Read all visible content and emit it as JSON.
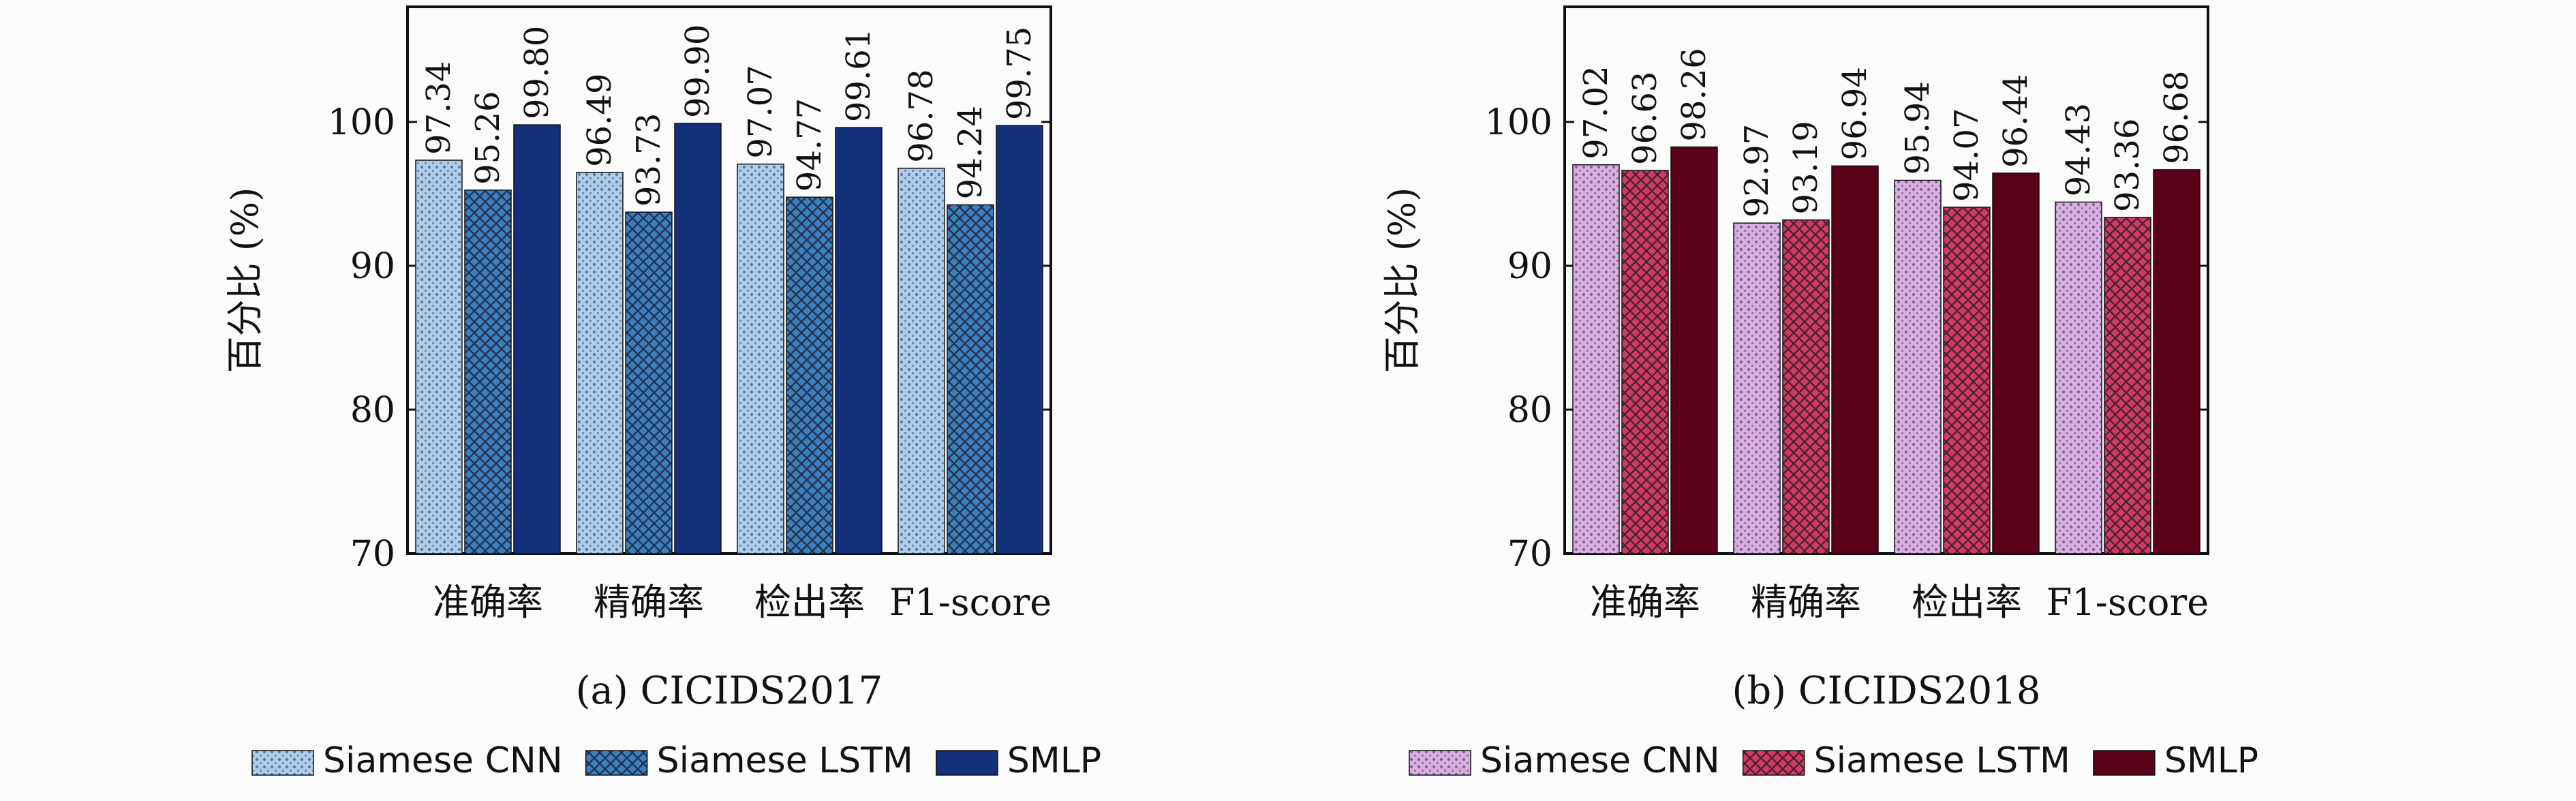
{
  "chart_data": [
    {
      "type": "bar",
      "caption": "(a) CICIDS2017",
      "ylabel": "百分比 (%)",
      "ylim": [
        70,
        108
      ],
      "yticks": [
        70,
        80,
        90,
        100
      ],
      "categories": [
        "准确率",
        "精确率",
        "检出率",
        "F1-score"
      ],
      "series": [
        {
          "name": "Siamese CNN",
          "values": [
            97.34,
            96.49,
            97.07,
            96.78
          ],
          "color": "#aecdea",
          "pattern": "dots"
        },
        {
          "name": "Siamese LSTM",
          "values": [
            95.26,
            93.73,
            94.77,
            94.24
          ],
          "color": "#3b7fbf",
          "pattern": "crosshatch"
        },
        {
          "name": "SMLP",
          "values": [
            99.8,
            99.9,
            99.61,
            99.75
          ],
          "color": "#15307a",
          "pattern": "solid"
        }
      ],
      "value_labels": [
        [
          "97.34",
          "96.49",
          "97.07",
          "96.78"
        ],
        [
          "95.26",
          "93.73",
          "94.77",
          "94.24"
        ],
        [
          "99.80",
          "99.90",
          "99.61",
          "99.75"
        ]
      ],
      "grid": false,
      "legend": "bottom"
    },
    {
      "type": "bar",
      "caption": "(b) CICIDS2018",
      "ylabel": "百分比 (%)",
      "ylim": [
        70,
        108
      ],
      "yticks": [
        70,
        80,
        90,
        100
      ],
      "categories": [
        "准确率",
        "精确率",
        "检出率",
        "F1-score"
      ],
      "series": [
        {
          "name": "Siamese CNN",
          "values": [
            97.02,
            92.97,
            95.94,
            94.43
          ],
          "color": "#dcaee0",
          "pattern": "dots"
        },
        {
          "name": "Siamese LSTM",
          "values": [
            96.63,
            93.19,
            94.07,
            93.36
          ],
          "color": "#d33a62",
          "pattern": "crosshatch"
        },
        {
          "name": "SMLP",
          "values": [
            98.26,
            96.94,
            96.44,
            96.68
          ],
          "color": "#5a0019",
          "pattern": "solid"
        }
      ],
      "value_labels": [
        [
          "97.02",
          "92.97",
          "95.94",
          "94.43"
        ],
        [
          "96.63",
          "93.19",
          "94.07",
          "93.36"
        ],
        [
          "98.26",
          "96.94",
          "96.44",
          "96.68"
        ]
      ],
      "grid": false,
      "legend": "bottom"
    }
  ]
}
